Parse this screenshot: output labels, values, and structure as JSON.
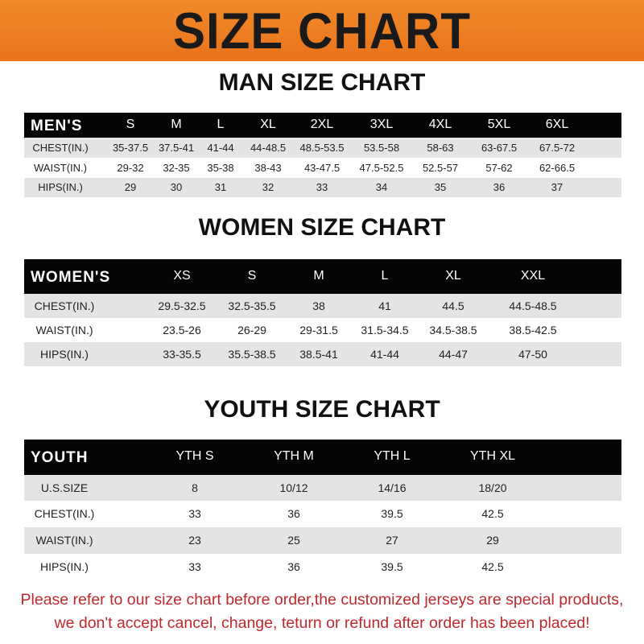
{
  "banner": {
    "title": "SIZE CHART",
    "color": "#ee7f22"
  },
  "tables": [
    {
      "title": "MAN SIZE CHART",
      "header": [
        "MEN'S",
        "S",
        "M",
        "L",
        "XL",
        "2XL",
        "3XL",
        "4XL",
        "5XL",
        "6XL"
      ],
      "rows": [
        [
          "CHEST(IN.)",
          "35-37.5",
          "37.5-41",
          "41-44",
          "44-48.5",
          "48.5-53.5",
          "53.5-58",
          "58-63",
          "63-67.5",
          "67.5-72"
        ],
        [
          "WAIST(IN.)",
          "29-32",
          "32-35",
          "35-38",
          "38-43",
          "43-47.5",
          "47.5-52.5",
          "52.5-57",
          "57-62",
          "62-66.5"
        ],
        [
          "HIPS(IN.)",
          "29",
          "30",
          "31",
          "32",
          "33",
          "34",
          "35",
          "36",
          "37"
        ]
      ]
    },
    {
      "title": "WOMEN SIZE CHART",
      "header": [
        "WOMEN'S",
        "XS",
        "S",
        "M",
        "L",
        "XL",
        "XXL"
      ],
      "rows": [
        [
          "CHEST(IN.)",
          "29.5-32.5",
          "32.5-35.5",
          "38",
          "41",
          "44.5",
          "44.5-48.5"
        ],
        [
          "WAIST(IN.)",
          "23.5-26",
          "26-29",
          "29-31.5",
          "31.5-34.5",
          "34.5-38.5",
          "38.5-42.5"
        ],
        [
          "HIPS(IN.)",
          "33-35.5",
          "35.5-38.5",
          "38.5-41",
          "41-44",
          "44-47",
          "47-50"
        ]
      ]
    },
    {
      "title": "YOUTH SIZE CHART",
      "header": [
        "YOUTH",
        "YTH S",
        "YTH M",
        "YTH L",
        "YTH XL"
      ],
      "rows": [
        [
          "U.S.SIZE",
          "8",
          "10/12",
          "14/16",
          "18/20"
        ],
        [
          "CHEST(IN.)",
          "33",
          "36",
          "39.5",
          "42.5"
        ],
        [
          "WAIST(IN.)",
          "23",
          "25",
          "27",
          "29"
        ],
        [
          "HIPS(IN.)",
          "33",
          "36",
          "39.5",
          "42.5"
        ]
      ]
    }
  ],
  "notice": [
    "Please refer to our size chart before order,the customized jerseys are special products,",
    "we don't accept cancel, change, teturn or refund after order has been placed!"
  ],
  "notice_color": "#c0292b"
}
